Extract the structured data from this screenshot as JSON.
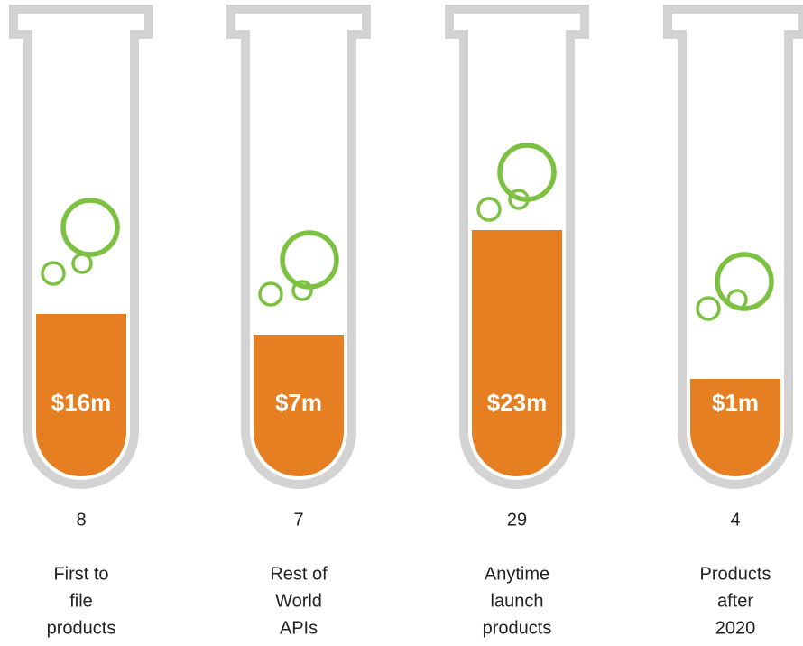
{
  "tubes": [
    {
      "value": "$16m",
      "count": 8,
      "label": [
        "First to",
        "file",
        "products"
      ]
    },
    {
      "value": "$7m",
      "count": 7,
      "label": [
        "Rest of",
        "World",
        "APIs"
      ]
    },
    {
      "value": "$23m",
      "count": 29,
      "label": [
        "Anytime",
        "launch",
        "products"
      ]
    },
    {
      "value": "$1m",
      "count": 4,
      "label": [
        "Products",
        "after",
        "2020"
      ]
    }
  ]
}
